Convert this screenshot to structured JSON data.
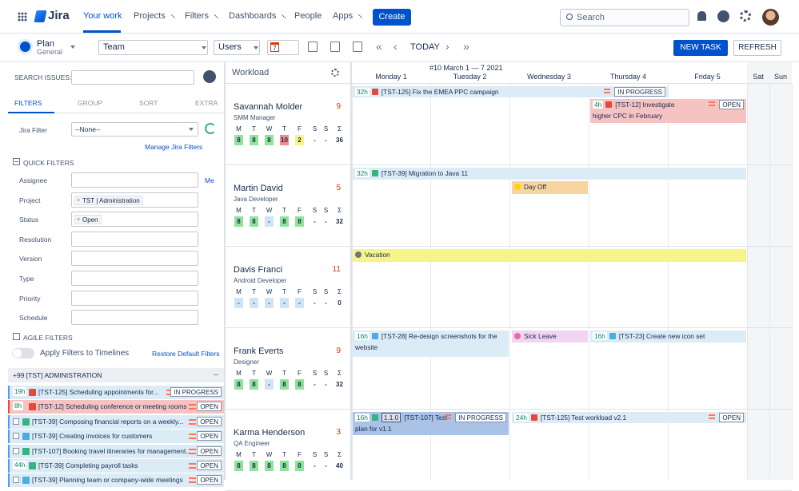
{
  "nav": {
    "logo": "Jira",
    "items": [
      "Your work",
      "Projects",
      "Filters",
      "Dashboards",
      "People",
      "Apps"
    ],
    "create": "Create",
    "search": "Search"
  },
  "toolbar": {
    "plan": "Plan",
    "plan_sub": "General",
    "team": "Team",
    "users": "Users",
    "calendar_day": "7",
    "today": "TODAY",
    "new_task": "NEW TASK",
    "refresh": "REFRESH"
  },
  "sidebar": {
    "search_label": "SEARCH ISSUES:",
    "tabs": [
      "FILTERS",
      "GROUP",
      "SORT",
      "EXTRA"
    ],
    "jira_filter_label": "Jira Filter",
    "jira_filter_value": "--None--",
    "manage_link": "Manage Jira Filters",
    "quick_filters": "QUICK FILTERS",
    "fields": [
      {
        "label": "Assignee",
        "link": "Me"
      },
      {
        "label": "Project",
        "chip": "TST | Administration"
      },
      {
        "label": "Status",
        "chip": "Open"
      },
      {
        "label": "Resolution"
      },
      {
        "label": "Version"
      },
      {
        "label": "Type"
      },
      {
        "label": "Priority"
      },
      {
        "label": "Schedule"
      }
    ],
    "agile_filters": "AGILE FILTERS",
    "apply_toggle": "Apply Filters to Timelines",
    "restore_link": "Restore Default Filters",
    "group": "+99 [TST] ADMINISTRATION",
    "issues": [
      {
        "estimate": "19h",
        "title": "[TST-125] Scheduling appointments for...",
        "status": "IN PROGRESS"
      },
      {
        "estimate": "8h",
        "title": "[TST-12] Scheduling conference or meeting rooms",
        "status": "OPEN"
      },
      {
        "title": "[TST-39] Composing financial reports on a weekly...",
        "status": "OPEN"
      },
      {
        "title": "[TST-39] Creating invoices for customers",
        "status": "OPEN"
      },
      {
        "title": "[TST-107] Booking travel itineraries for management...",
        "status": "OPEN"
      },
      {
        "estimate": "44h",
        "title": "[TST-39] Completing payroll tasks",
        "status": "OPEN"
      },
      {
        "title": "[TST-39] Planning team or company-wide meetings",
        "status": "OPEN"
      }
    ]
  },
  "workload": {
    "title": "Workload",
    "week": "#10 March 1 — 7 2021",
    "days": [
      "Monday 1",
      "Tuesday 2",
      "Wednesday 3",
      "Thursday 4",
      "Friday 5",
      "Sat",
      "Sun"
    ],
    "weekday_letters": [
      "M",
      "T",
      "W",
      "T",
      "F",
      "S",
      "S",
      "Σ"
    ],
    "people": [
      {
        "name": "Savannah Molder",
        "role": "SMM Manager",
        "count": 9,
        "hours": [
          8,
          8,
          8,
          10,
          2,
          "-",
          "-",
          36
        ],
        "tasks": [
          {
            "estimate": "32h",
            "title": "[TST-125] Fix the EMEA PPC campaign",
            "status": "IN PROGRESS"
          },
          {
            "estimate": "4h",
            "title": "[TST-12] Investigate higher CPC in February",
            "status": "OPEN"
          }
        ]
      },
      {
        "name": "Martin David",
        "role": "Java Developer",
        "count": 5,
        "hours": [
          8,
          8,
          "-",
          8,
          8,
          "-",
          "-",
          32
        ],
        "tasks": [
          {
            "estimate": "32h",
            "title": "[TST-39] Migration to Java 11"
          },
          {
            "title": "Day Off"
          }
        ]
      },
      {
        "name": "Davis Franci",
        "role": "Android Developer",
        "count": 11,
        "hours": [
          "-",
          "-",
          "-",
          "-",
          "-",
          "-",
          "-",
          0
        ],
        "tasks": [
          {
            "title": "Vacation"
          }
        ]
      },
      {
        "name": "Frank Everts",
        "role": "Designer",
        "count": 9,
        "hours": [
          8,
          8,
          "-",
          8,
          8,
          "-",
          "-",
          32
        ],
        "tasks": [
          {
            "estimate": "16h",
            "title": "[TST-28] Re-design screenshots for the website"
          },
          {
            "title": "Sick Leave"
          },
          {
            "estimate": "16h",
            "title": "[TST-23] Create new icon set"
          }
        ]
      },
      {
        "name": "Karma Henderson",
        "role": "QA Engineer",
        "count": 3,
        "hours": [
          8,
          8,
          8,
          8,
          8,
          "-",
          "-",
          40
        ],
        "tasks": [
          {
            "estimate": "16h",
            "version": "1.1.0",
            "title": "[TST-107] Test plan for v1.1",
            "status": "IN PROGRESS"
          },
          {
            "estimate": "24h",
            "title": "[TST-125] Test workload v2.1",
            "status": "OPEN"
          }
        ]
      }
    ]
  }
}
